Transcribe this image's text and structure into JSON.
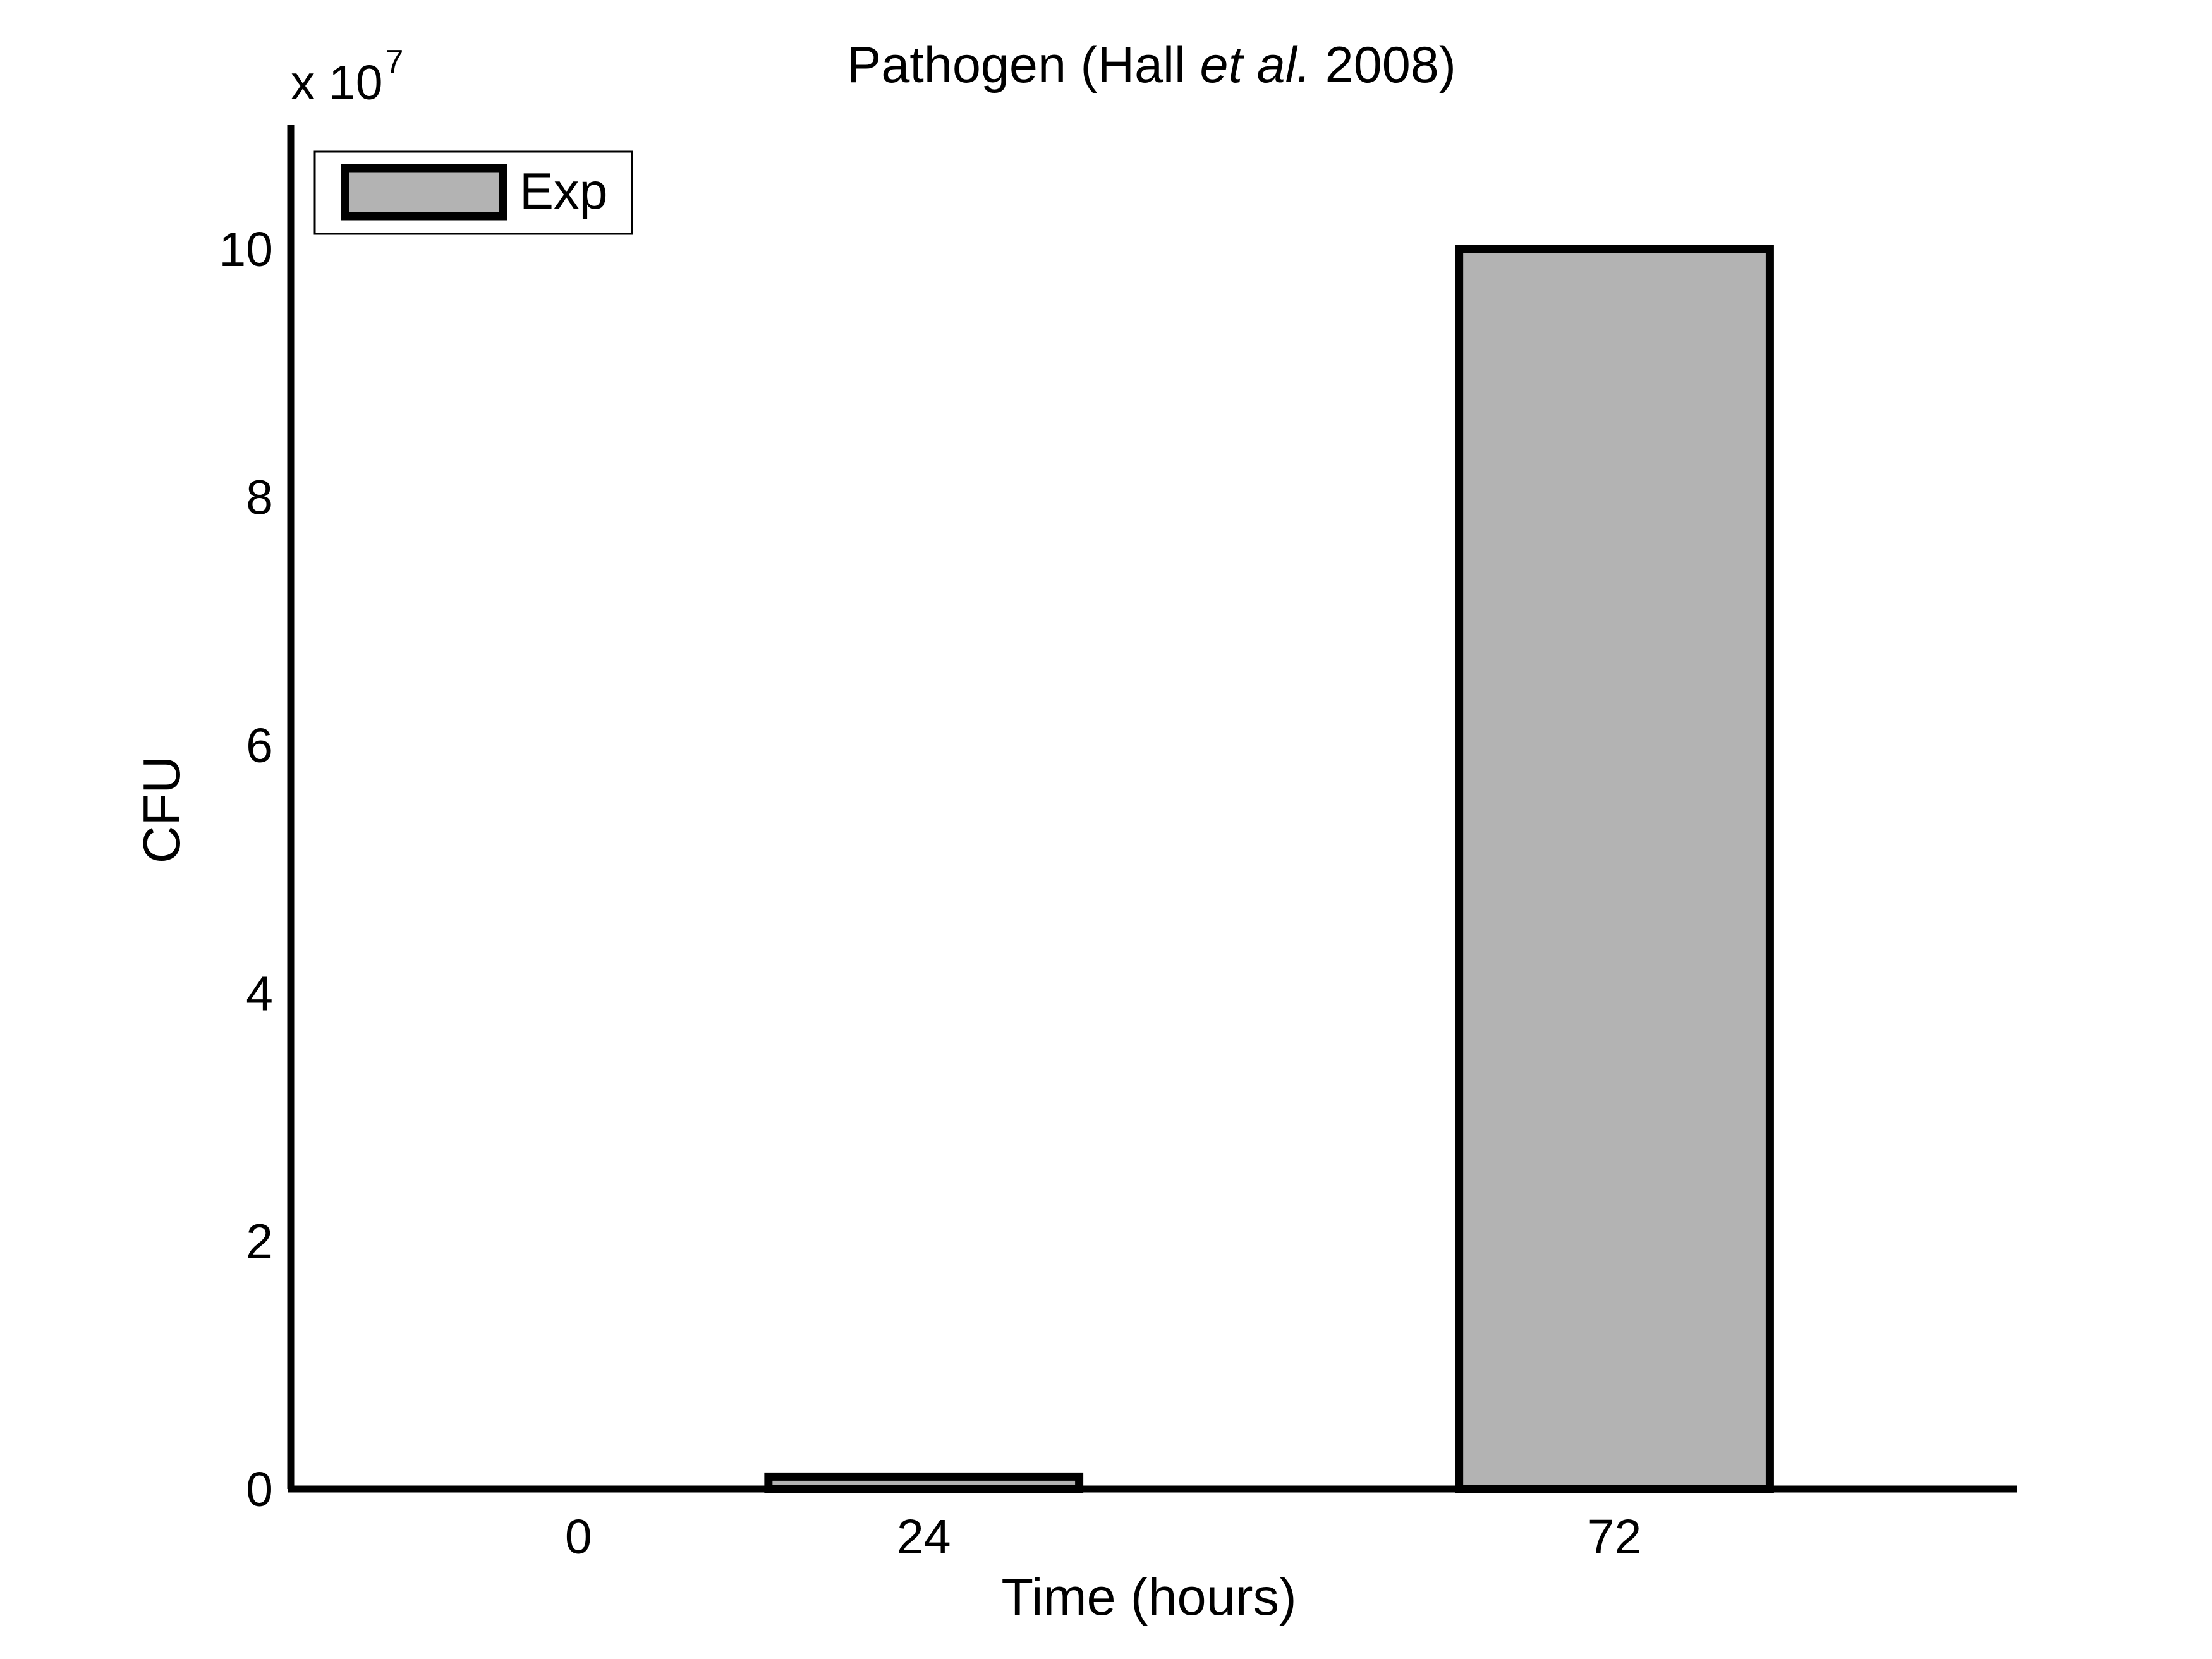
{
  "chart_data": {
    "type": "bar",
    "title": {
      "before": "Pathogen (Hall ",
      "italic": "et al.",
      "after": " 2008)"
    },
    "xlabel": "Time (hours)",
    "ylabel": "CFU",
    "y_multiplier": {
      "prefix": "x 10",
      "exponent": "7"
    },
    "x": [
      0,
      24,
      72
    ],
    "categories": [
      "0",
      "24",
      "72"
    ],
    "series": [
      {
        "name": "Exp",
        "values": [
          0,
          0.1,
          10.0
        ],
        "fill": "#b3b3b3",
        "stroke": "#000000"
      }
    ],
    "xlim": [
      -20,
      100
    ],
    "ylim": [
      0,
      11
    ],
    "yticks": [
      0,
      2,
      4,
      6,
      8,
      10
    ],
    "ytick_labels": [
      "0",
      "2",
      "4",
      "6",
      "8",
      "10"
    ],
    "bar_width_hours": 21.6,
    "legend": {
      "position": "top-left",
      "entries": [
        "Exp"
      ]
    },
    "grid": false
  }
}
